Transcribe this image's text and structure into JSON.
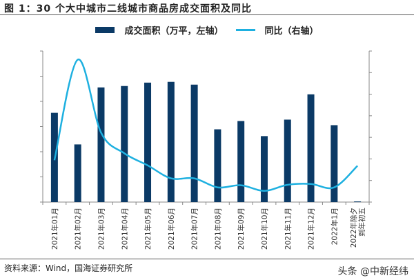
{
  "header": {
    "title": "图 1：30 个大中城市二线城市商品房成交面积及同比"
  },
  "footer": {
    "source": "资料来源：Wind，国海证券研究所",
    "watermark": "头条 @中新经纬"
  },
  "chart_data": {
    "type": "bar+line",
    "title": "图 1：30 个大中城市二线城市商品房成交面积及同比",
    "categories": [
      "2021年01月",
      "2021年02月",
      "2021年03月",
      "2021年04月",
      "2021年05月",
      "2021年06月",
      "2021年07月",
      "2021年08月",
      "2021年09月",
      "2021年10月",
      "2021年11月",
      "2021年12月",
      "2022年1月",
      "2022年除夕到年初五"
    ],
    "series": [
      {
        "name": "成交面积（万平，左轴）",
        "type": "bar",
        "axis": "left",
        "color": "#0b3a66",
        "values": [
          709,
          458,
          911,
          922,
          949,
          955,
          933,
          578,
          644,
          524,
          655,
          856,
          611,
          5
        ]
      },
      {
        "name": "同比（右轴）",
        "type": "line",
        "axis": "right",
        "color": "#1eb0e0",
        "values": [
          47,
          280,
          111,
          63,
          35,
          5,
          5,
          -16,
          -11,
          -24,
          -10,
          -8,
          -16,
          34
        ]
      }
    ],
    "left_axis": {
      "ylim": [
        0,
        1200
      ],
      "ticks": [
        "0",
        "200",
        "400",
        "600",
        "800",
        "1,000",
        "1,200"
      ]
    },
    "right_axis": {
      "ylim": [
        -50,
        300
      ],
      "ticks": [
        "-50%",
        "0%",
        "50%",
        "100%",
        "150%",
        "200%",
        "250%",
        "300%"
      ]
    },
    "grid": false,
    "legend": "top-center"
  }
}
